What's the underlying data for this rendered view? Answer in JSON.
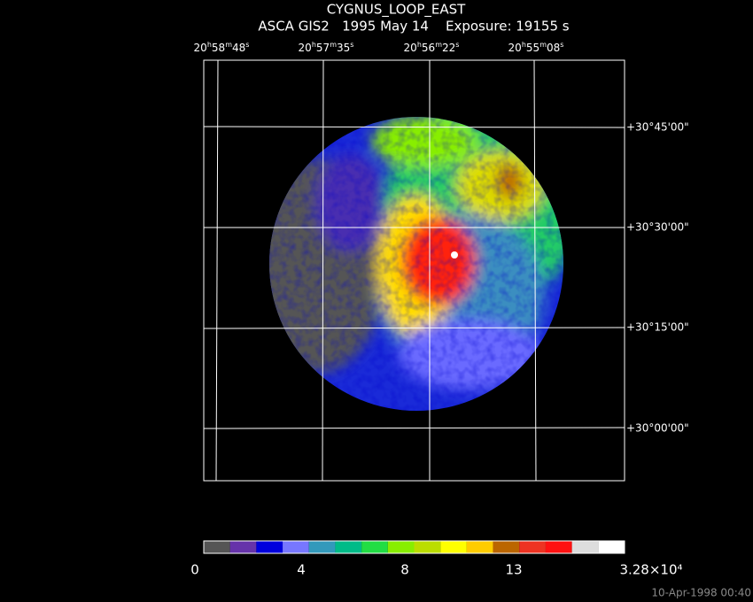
{
  "header": {
    "title": "CYGNUS_LOOP_EAST",
    "subtitle": "ASCA GIS2   1995 May 14    Exposure: 19155 s"
  },
  "ra_labels": [
    [
      "20",
      "h",
      "58",
      "m",
      "48",
      "s"
    ],
    [
      "20",
      "h",
      "57",
      "m",
      "35",
      "s"
    ],
    [
      "20",
      "h",
      "56",
      "m",
      "22",
      "s"
    ],
    [
      "20",
      "h",
      "55",
      "m",
      "08",
      "s"
    ]
  ],
  "dec_labels": [
    "+30°45'00\"",
    "+30°30'00\"",
    "+30°15'00\"",
    "+30°00'00\""
  ],
  "colorbar": {
    "colors": [
      "#555555",
      "#6633aa",
      "#0000dd",
      "#7777ff",
      "#3399bb",
      "#00bb88",
      "#22dd44",
      "#88ee00",
      "#bbdd00",
      "#ffff00",
      "#ffcc00",
      "#bb6600",
      "#ee3322",
      "#ff1111",
      "#dddddd",
      "#ffffff"
    ],
    "labels": [
      "0",
      "4",
      "8",
      "13",
      "3.28×10⁴"
    ]
  },
  "timestamp": "10-Apr-1998 00:40"
}
